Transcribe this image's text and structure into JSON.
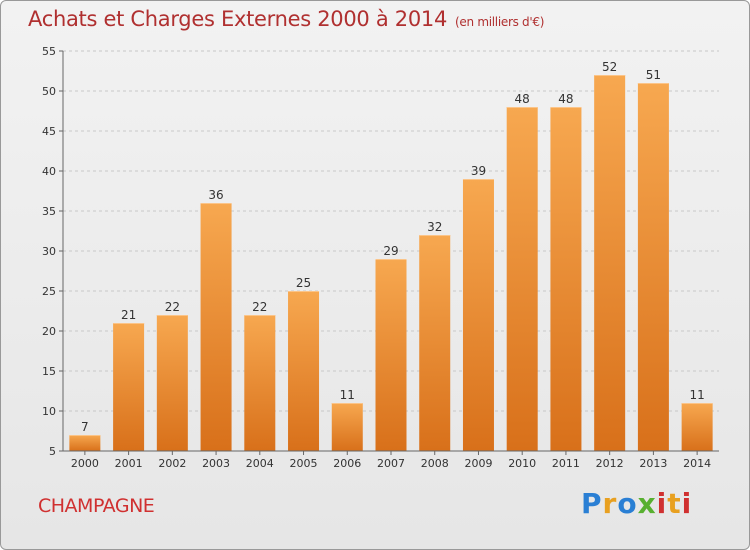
{
  "header": {
    "title": "Achats et Charges Externes 2000 à 2014",
    "unit": "(en milliers d'€)"
  },
  "commune": "CHAMPAGNE",
  "logo": {
    "text": "Proxiti"
  },
  "colors": {
    "bar": "#f08a30",
    "bar_light": "#f7aa58",
    "bar_dark": "#d06c18",
    "title": "#b03030",
    "grid": "#c8c8c8"
  },
  "chart_data": {
    "type": "bar",
    "title": "Achats et Charges Externes 2000 à 2014",
    "subtitle": "(en milliers d'€)",
    "categories": [
      "2000",
      "2001",
      "2002",
      "2003",
      "2004",
      "2005",
      "2006",
      "2007",
      "2008",
      "2009",
      "2010",
      "2011",
      "2012",
      "2013",
      "2014"
    ],
    "values": [
      7,
      21,
      22,
      36,
      22,
      25,
      11,
      29,
      32,
      39,
      48,
      48,
      52,
      51,
      11
    ],
    "ylim": [
      5,
      55
    ],
    "yticks": [
      5,
      10,
      15,
      20,
      25,
      30,
      35,
      40,
      45,
      50,
      55
    ],
    "grid": true,
    "xlabel": "",
    "ylabel": ""
  }
}
